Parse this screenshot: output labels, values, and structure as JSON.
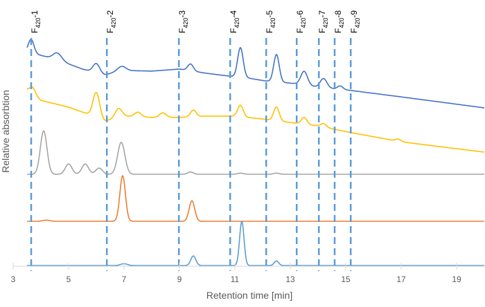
{
  "chart_data": {
    "type": "line",
    "title": "",
    "xlabel": "Retention time [min]",
    "ylabel": "Relative absorbtion",
    "xlim": [
      3,
      20
    ],
    "ylim": [
      0,
      100
    ],
    "xticks": [
      "3",
      "5",
      "7",
      "9",
      "11",
      "13",
      "15",
      "17",
      "19"
    ],
    "grid": false,
    "legend": "none",
    "markers": [
      {
        "label": "F420-1",
        "base": "F",
        "sub": "420",
        "suffix": "-1",
        "x": 3.65
      },
      {
        "label": "F420-2",
        "base": "F",
        "sub": "420",
        "suffix": "-2",
        "x": 6.38
      },
      {
        "label": "F420-3",
        "base": "F",
        "sub": "420",
        "suffix": "-3",
        "x": 8.98
      },
      {
        "label": "F420-4",
        "base": "F",
        "sub": "420",
        "suffix": "-4",
        "x": 10.83
      },
      {
        "label": "F420-5",
        "base": "F",
        "sub": "420",
        "suffix": "-5",
        "x": 12.13
      },
      {
        "label": "F420-6",
        "base": "F",
        "sub": "420",
        "suffix": "-6",
        "x": 13.23
      },
      {
        "label": "F420-7",
        "base": "F",
        "sub": "420",
        "suffix": "-7",
        "x": 14.03
      },
      {
        "label": "F420-8",
        "base": "F",
        "sub": "420",
        "suffix": "-8",
        "x": 14.6
      },
      {
        "label": "F420-9",
        "base": "F",
        "sub": "420",
        "suffix": "-9",
        "x": 15.18
      }
    ],
    "marker_color": "#5B9BD5",
    "series": [
      {
        "color": "#4472C4",
        "x_start": 3.5,
        "baseline": [
          [
            3.5,
            93.9
          ],
          [
            4.5,
            90.9
          ],
          [
            5.5,
            86.4
          ],
          [
            6.3,
            83.9
          ],
          [
            7,
            85.8
          ],
          [
            8,
            85.5
          ],
          [
            9,
            86.4
          ],
          [
            10,
            84.5
          ],
          [
            10.8,
            83.3
          ],
          [
            11.5,
            82.4
          ],
          [
            12.1,
            81.2
          ],
          [
            13.2,
            80
          ],
          [
            14,
            78.5
          ],
          [
            15.2,
            77
          ],
          [
            17,
            74.2
          ],
          [
            20,
            69.4
          ]
        ],
        "peaks": [
          [
            3.65,
            6,
            0.1
          ],
          [
            4.6,
            3,
            0.15
          ],
          [
            6.0,
            4,
            0.12
          ],
          [
            6.9,
            2,
            0.15
          ],
          [
            9.4,
            3,
            0.1
          ],
          [
            11.2,
            13,
            0.1
          ],
          [
            12.5,
            12,
            0.1
          ],
          [
            13.5,
            6,
            0.12
          ],
          [
            14.2,
            4,
            0.12
          ],
          [
            14.8,
            1.5,
            0.1
          ]
        ]
      },
      {
        "color": "#FFC000",
        "x_start": 3.5,
        "baseline": [
          [
            3.5,
            77.3
          ],
          [
            4,
            72.7
          ],
          [
            5,
            69.7
          ],
          [
            5.7,
            66.7
          ],
          [
            6.3,
            63.6
          ],
          [
            7,
            65.8
          ],
          [
            8,
            65.2
          ],
          [
            9,
            65.2
          ],
          [
            10,
            65.8
          ],
          [
            11,
            65.8
          ],
          [
            12,
            64.5
          ],
          [
            13,
            63
          ],
          [
            14,
            61.5
          ],
          [
            15,
            59
          ],
          [
            17,
            54.5
          ],
          [
            20,
            50
          ]
        ],
        "peaks": [
          [
            3.7,
            3,
            0.1
          ],
          [
            6.0,
            11,
            0.12
          ],
          [
            6.8,
            4,
            0.12
          ],
          [
            7.5,
            2,
            0.12
          ],
          [
            8.4,
            2,
            0.12
          ],
          [
            9.5,
            3,
            0.1
          ],
          [
            11.2,
            5,
            0.1
          ],
          [
            12.5,
            6,
            0.1
          ],
          [
            13.5,
            3,
            0.1
          ],
          [
            14.2,
            1.5,
            0.1
          ],
          [
            16.9,
            1,
            0.1
          ]
        ]
      },
      {
        "color": "#A5A5A5",
        "x_start": 3.5,
        "baseline": [
          [
            3.5,
            40.3
          ],
          [
            20,
            40.3
          ]
        ],
        "peaks": [
          [
            4.1,
            19,
            0.12
          ],
          [
            5.0,
            4.5,
            0.12
          ],
          [
            5.6,
            4.5,
            0.12
          ],
          [
            6.1,
            2.7,
            0.12
          ],
          [
            6.9,
            14,
            0.13
          ],
          [
            9.4,
            1,
            0.1
          ],
          [
            11.2,
            0.5,
            0.1
          ],
          [
            12.5,
            0.5,
            0.1
          ]
        ]
      },
      {
        "color": "#ED7D31",
        "x_start": 3.5,
        "baseline": [
          [
            3.5,
            19.7
          ],
          [
            20,
            19.7
          ]
        ],
        "peaks": [
          [
            4.2,
            0.5,
            0.12
          ],
          [
            6.95,
            20,
            0.1
          ],
          [
            9.45,
            9,
            0.1
          ]
        ]
      },
      {
        "color": "#5B9BD5",
        "x_start": 3.5,
        "baseline": [
          [
            3.5,
            0.3
          ],
          [
            20,
            0.3
          ]
        ],
        "peaks": [
          [
            7.0,
            0.8,
            0.12
          ],
          [
            9.5,
            4.2,
            0.09
          ],
          [
            11.25,
            19.4,
            0.08
          ],
          [
            12.5,
            2,
            0.08
          ]
        ]
      }
    ]
  }
}
